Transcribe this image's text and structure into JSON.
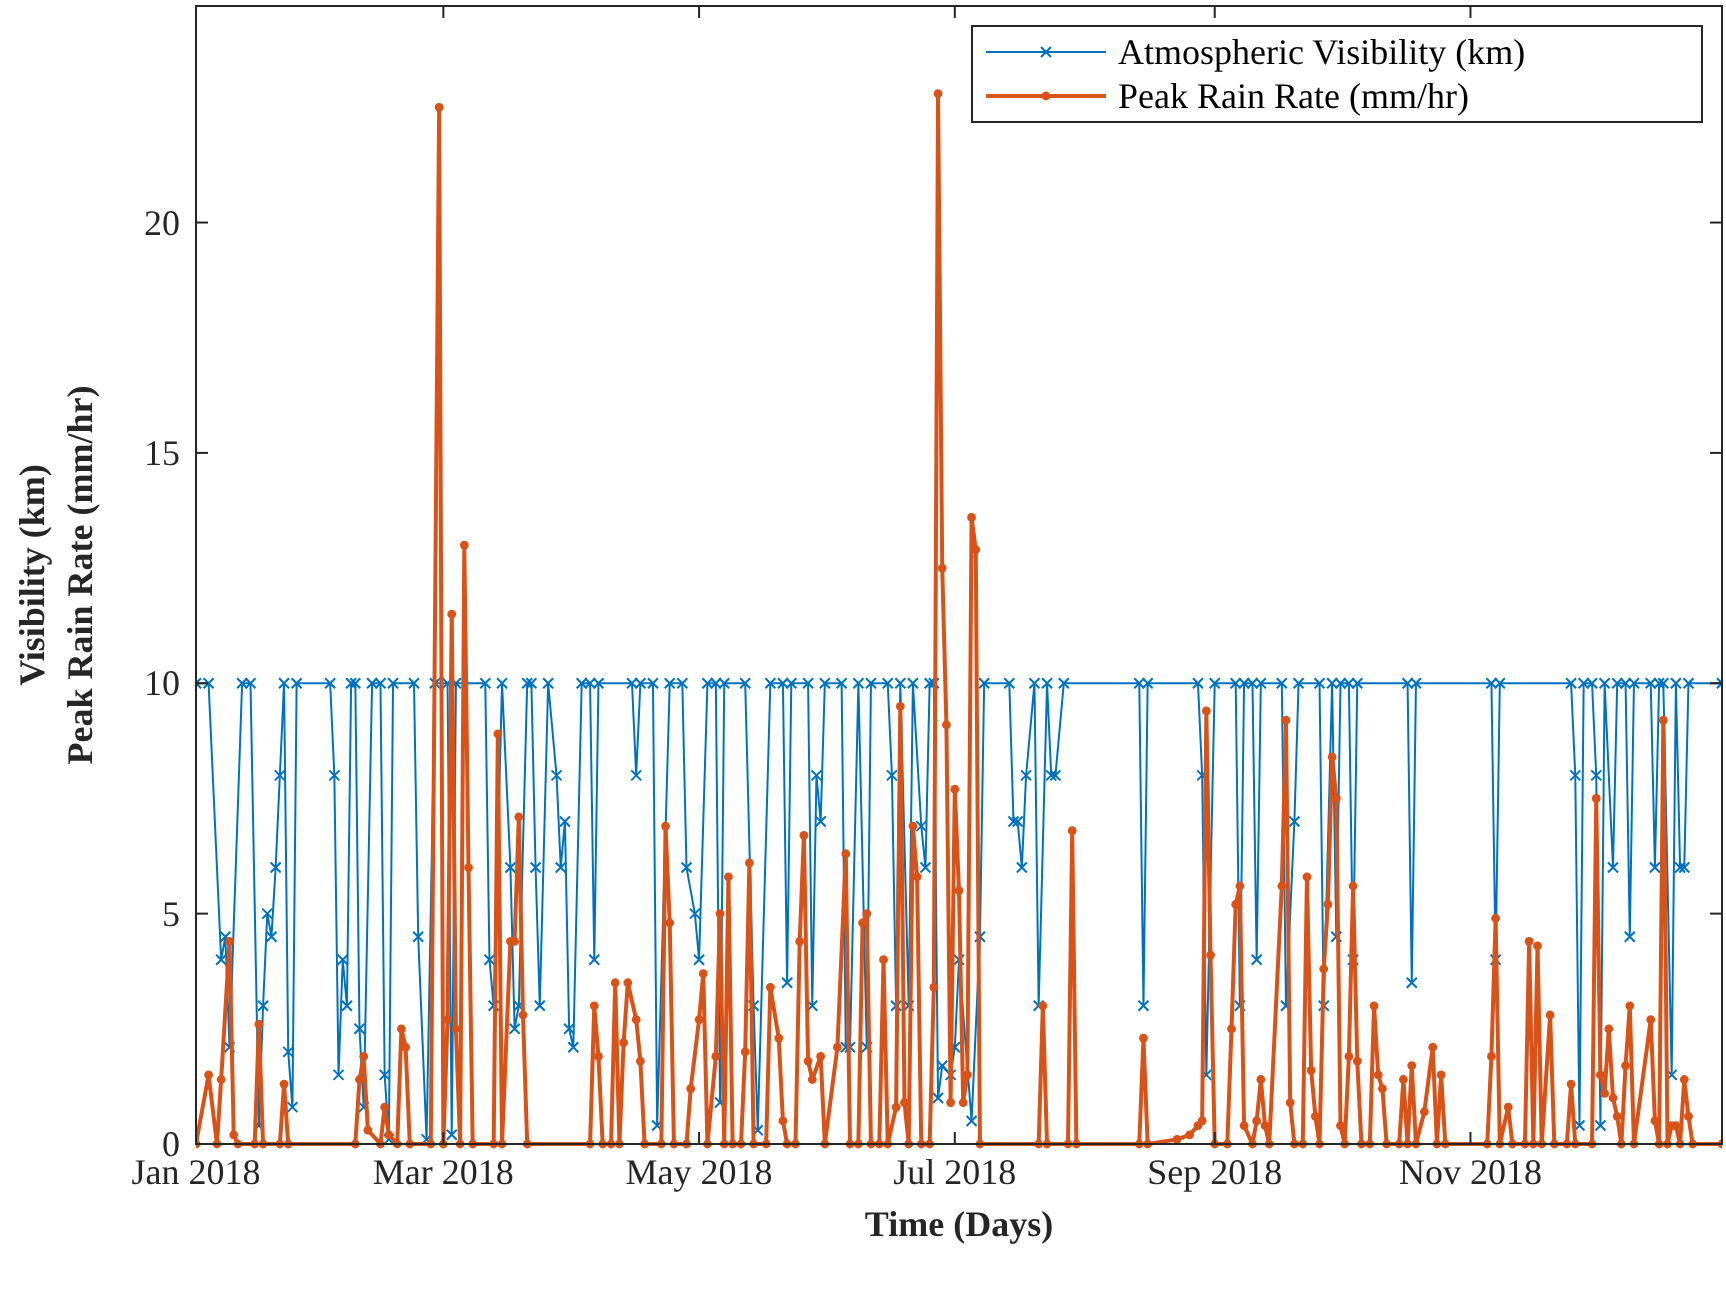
{
  "chart_data": {
    "type": "line",
    "xlabel": "Time (Days)",
    "ylabel": "Visibility (km)\nPeak Rain Rate (mm/hr)",
    "xlim": [
      "2018-01-01",
      "2018-12-31"
    ],
    "xticks": [
      {
        "value": "2018-01-01",
        "label": "Jan 2018"
      },
      {
        "value": "2018-03-01",
        "label": "Mar 2018"
      },
      {
        "value": "2018-05-01",
        "label": "May 2018"
      },
      {
        "value": "2018-07-01",
        "label": "Jul 2018"
      },
      {
        "value": "2018-09-01",
        "label": "Sep 2018"
      },
      {
        "value": "2018-11-01",
        "label": "Nov 2018"
      }
    ],
    "ylim": [
      0,
      24.7
    ],
    "yticks": [
      0,
      5,
      10,
      15,
      20
    ],
    "grid": false,
    "legend": "top right",
    "line_style": "solid",
    "series": [
      {
        "name": "Atmospheric Visibility (km)",
        "color": "#0072bd",
        "marker": "cross",
        "x": [
          "2018-01-01",
          "2018-01-04",
          "2018-01-07",
          "2018-01-08",
          "2018-01-09",
          "2018-01-12",
          "2018-01-14",
          "2018-01-16",
          "2018-01-17",
          "2018-01-18",
          "2018-01-19",
          "2018-01-20",
          "2018-01-21",
          "2018-01-22",
          "2018-01-23",
          "2018-01-24",
          "2018-01-25",
          "2018-02-02",
          "2018-02-03",
          "2018-02-04",
          "2018-02-05",
          "2018-02-06",
          "2018-02-07",
          "2018-02-08",
          "2018-02-09",
          "2018-02-10",
          "2018-02-12",
          "2018-02-14",
          "2018-02-15",
          "2018-02-16",
          "2018-02-17",
          "2018-02-22",
          "2018-02-23",
          "2018-02-25",
          "2018-02-27",
          "2018-03-02",
          "2018-03-03",
          "2018-03-04",
          "2018-03-11",
          "2018-03-12",
          "2018-03-13",
          "2018-03-15",
          "2018-03-17",
          "2018-03-18",
          "2018-03-19",
          "2018-03-21",
          "2018-03-22",
          "2018-03-23",
          "2018-03-24",
          "2018-03-26",
          "2018-03-28",
          "2018-03-29",
          "2018-03-30",
          "2018-03-31",
          "2018-04-01",
          "2018-04-03",
          "2018-04-05",
          "2018-04-06",
          "2018-04-07",
          "2018-04-15",
          "2018-04-16",
          "2018-04-17",
          "2018-04-20",
          "2018-04-21",
          "2018-04-24",
          "2018-04-27",
          "2018-04-28",
          "2018-04-30",
          "2018-05-01",
          "2018-05-03",
          "2018-05-05",
          "2018-05-06",
          "2018-05-07",
          "2018-05-12",
          "2018-05-14",
          "2018-05-15",
          "2018-05-18",
          "2018-05-21",
          "2018-05-22",
          "2018-05-23",
          "2018-05-27",
          "2018-05-28",
          "2018-05-29",
          "2018-05-30",
          "2018-05-31",
          "2018-06-04",
          "2018-06-05",
          "2018-06-06",
          "2018-06-08",
          "2018-06-10",
          "2018-06-11",
          "2018-06-15",
          "2018-06-16",
          "2018-06-17",
          "2018-06-18",
          "2018-06-20",
          "2018-06-21",
          "2018-06-23",
          "2018-06-24",
          "2018-06-25",
          "2018-06-26",
          "2018-06-27",
          "2018-06-28",
          "2018-06-30",
          "2018-07-01",
          "2018-07-02",
          "2018-07-05",
          "2018-07-07",
          "2018-07-08",
          "2018-07-14",
          "2018-07-15",
          "2018-07-16",
          "2018-07-17",
          "2018-07-18",
          "2018-07-20",
          "2018-07-21",
          "2018-07-23",
          "2018-07-24",
          "2018-07-25",
          "2018-07-27",
          "2018-08-14",
          "2018-08-15",
          "2018-08-16",
          "2018-08-28",
          "2018-08-29",
          "2018-08-30",
          "2018-09-01",
          "2018-09-06",
          "2018-09-07",
          "2018-09-08",
          "2018-09-10",
          "2018-09-11",
          "2018-09-12",
          "2018-09-17",
          "2018-09-18",
          "2018-09-20",
          "2018-09-21",
          "2018-09-26",
          "2018-09-27",
          "2018-09-29",
          "2018-09-30",
          "2018-10-01",
          "2018-10-03",
          "2018-10-04",
          "2018-10-05",
          "2018-10-17",
          "2018-10-18",
          "2018-10-19",
          "2018-11-06",
          "2018-11-07",
          "2018-11-08",
          "2018-11-25",
          "2018-11-26",
          "2018-11-27",
          "2018-11-28",
          "2018-11-30",
          "2018-12-01",
          "2018-12-02",
          "2018-12-03",
          "2018-12-05",
          "2018-12-06",
          "2018-12-08",
          "2018-12-09",
          "2018-12-10",
          "2018-12-14",
          "2018-12-15",
          "2018-12-16",
          "2018-12-17",
          "2018-12-19",
          "2018-12-20",
          "2018-12-21",
          "2018-12-22",
          "2018-12-23",
          "2018-12-31"
        ],
        "values": [
          10,
          10,
          4.0,
          4.5,
          2.1,
          10,
          10,
          0.4,
          3.0,
          5.0,
          4.5,
          6.0,
          8.0,
          10,
          2.0,
          0.8,
          10,
          10,
          8.0,
          1.5,
          4.0,
          3.0,
          10,
          10,
          2.5,
          0.8,
          10,
          10,
          1.5,
          0.1,
          10,
          10,
          4.5,
          0.1,
          10,
          10,
          0.2,
          10,
          10,
          4.0,
          3.0,
          10,
          6.0,
          2.5,
          3.0,
          10,
          10,
          6.0,
          3.0,
          10,
          8.0,
          6.0,
          7.0,
          2.5,
          2.1,
          10,
          10,
          4.0,
          10,
          10,
          8.0,
          10,
          10,
          0.4,
          10,
          10,
          6.0,
          5.0,
          4.0,
          10,
          10,
          0.9,
          10,
          10,
          3.0,
          0.3,
          10,
          10,
          3.5,
          10,
          10,
          3.0,
          8.0,
          7.0,
          10,
          10,
          2.1,
          2.1,
          10,
          2.1,
          10,
          10,
          8.0,
          3.0,
          10,
          3.0,
          10,
          6.9,
          6.0,
          10,
          10,
          1.0,
          1.7,
          1.5,
          2.1,
          4.0,
          0.5,
          4.5,
          10,
          10,
          7.0,
          7.0,
          6.0,
          8.0,
          10,
          3.0,
          10,
          8.0,
          8.0,
          10,
          10,
          3.0,
          10,
          10,
          8.0,
          1.5,
          10,
          10,
          3.0,
          10,
          10,
          4.0,
          10,
          10,
          3.0,
          7.0,
          10,
          10,
          3.0,
          10,
          4.5,
          10,
          10,
          4.0,
          10,
          10,
          3.5,
          10,
          10,
          4.0,
          10,
          10,
          8.0,
          0.4,
          10,
          10,
          8.0,
          0.4,
          10,
          6.0,
          10,
          10,
          4.5,
          10,
          10,
          6.0,
          10,
          10,
          1.5,
          10,
          6.0,
          6.0,
          10,
          10
        ]
      },
      {
        "name": "Peak Rain Rate (mm/hr)",
        "color": "#d95319",
        "marker": "circle",
        "x": [
          "2018-01-01",
          "2018-01-04",
          "2018-01-06",
          "2018-01-07",
          "2018-01-09",
          "2018-01-10",
          "2018-01-11",
          "2018-01-15",
          "2018-01-16",
          "2018-01-17",
          "2018-01-21",
          "2018-01-22",
          "2018-01-23",
          "2018-02-08",
          "2018-02-09",
          "2018-02-10",
          "2018-02-11",
          "2018-02-14",
          "2018-02-15",
          "2018-02-16",
          "2018-02-18",
          "2018-02-19",
          "2018-02-20",
          "2018-02-21",
          "2018-02-26",
          "2018-02-28",
          "2018-03-01",
          "2018-03-02",
          "2018-03-03",
          "2018-03-04",
          "2018-03-05",
          "2018-03-06",
          "2018-03-07",
          "2018-03-08",
          "2018-03-13",
          "2018-03-14",
          "2018-03-15",
          "2018-03-17",
          "2018-03-18",
          "2018-03-19",
          "2018-03-20",
          "2018-03-21",
          "2018-04-05",
          "2018-04-06",
          "2018-04-07",
          "2018-04-08",
          "2018-04-10",
          "2018-04-11",
          "2018-04-12",
          "2018-04-13",
          "2018-04-14",
          "2018-04-16",
          "2018-04-17",
          "2018-04-18",
          "2018-04-22",
          "2018-04-23",
          "2018-04-24",
          "2018-04-25",
          "2018-04-28",
          "2018-04-29",
          "2018-05-01",
          "2018-05-02",
          "2018-05-03",
          "2018-05-05",
          "2018-05-06",
          "2018-05-07",
          "2018-05-08",
          "2018-05-09",
          "2018-05-11",
          "2018-05-12",
          "2018-05-13",
          "2018-05-14",
          "2018-05-17",
          "2018-05-18",
          "2018-05-20",
          "2018-05-21",
          "2018-05-22",
          "2018-05-24",
          "2018-05-25",
          "2018-05-26",
          "2018-05-27",
          "2018-05-28",
          "2018-05-30",
          "2018-05-31",
          "2018-06-03",
          "2018-06-05",
          "2018-06-06",
          "2018-06-08",
          "2018-06-09",
          "2018-06-10",
          "2018-06-11",
          "2018-06-13",
          "2018-06-14",
          "2018-06-15",
          "2018-06-17",
          "2018-06-18",
          "2018-06-19",
          "2018-06-20",
          "2018-06-21",
          "2018-06-22",
          "2018-06-23",
          "2018-06-25",
          "2018-06-26",
          "2018-06-27",
          "2018-06-28",
          "2018-06-29",
          "2018-06-30",
          "2018-07-01",
          "2018-07-02",
          "2018-07-03",
          "2018-07-04",
          "2018-07-05",
          "2018-07-06",
          "2018-07-07",
          "2018-07-21",
          "2018-07-22",
          "2018-07-23",
          "2018-07-28",
          "2018-07-29",
          "2018-07-30",
          "2018-08-14",
          "2018-08-15",
          "2018-08-16",
          "2018-08-23",
          "2018-08-26",
          "2018-08-28",
          "2018-08-29",
          "2018-08-30",
          "2018-08-31",
          "2018-09-01",
          "2018-09-04",
          "2018-09-05",
          "2018-09-06",
          "2018-09-07",
          "2018-09-08",
          "2018-09-10",
          "2018-09-11",
          "2018-09-12",
          "2018-09-13",
          "2018-09-14",
          "2018-09-17",
          "2018-09-18",
          "2018-09-19",
          "2018-09-20",
          "2018-09-22",
          "2018-09-23",
          "2018-09-24",
          "2018-09-25",
          "2018-09-26",
          "2018-09-27",
          "2018-09-28",
          "2018-09-29",
          "2018-09-30",
          "2018-10-01",
          "2018-10-02",
          "2018-10-03",
          "2018-10-04",
          "2018-10-05",
          "2018-10-06",
          "2018-10-08",
          "2018-10-09",
          "2018-10-10",
          "2018-10-11",
          "2018-10-12",
          "2018-10-15",
          "2018-10-16",
          "2018-10-17",
          "2018-10-18",
          "2018-10-19",
          "2018-10-21",
          "2018-10-23",
          "2018-10-24",
          "2018-10-25",
          "2018-10-26",
          "2018-11-05",
          "2018-11-06",
          "2018-11-07",
          "2018-11-08",
          "2018-11-10",
          "2018-11-11",
          "2018-11-14",
          "2018-11-15",
          "2018-11-16",
          "2018-11-17",
          "2018-11-18",
          "2018-11-20",
          "2018-11-21",
          "2018-11-24",
          "2018-11-25",
          "2018-11-26",
          "2018-11-30",
          "2018-12-01",
          "2018-12-02",
          "2018-12-03",
          "2018-12-04",
          "2018-12-05",
          "2018-12-06",
          "2018-12-07",
          "2018-12-08",
          "2018-12-09",
          "2018-12-10",
          "2018-12-14",
          "2018-12-15",
          "2018-12-16",
          "2018-12-17",
          "2018-12-18",
          "2018-12-19",
          "2018-12-20",
          "2018-12-21",
          "2018-12-22",
          "2018-12-23",
          "2018-12-24",
          "2018-12-31"
        ],
        "values": [
          0,
          1.5,
          0,
          1.4,
          4.4,
          0.2,
          0,
          0,
          2.6,
          0,
          0,
          1.3,
          0,
          0,
          1.4,
          1.9,
          0.3,
          0,
          0.8,
          0.2,
          0,
          2.5,
          2.1,
          0,
          0,
          22.5,
          0,
          2.7,
          11.5,
          2.5,
          0,
          13.0,
          6.0,
          0,
          0,
          8.9,
          0,
          4.4,
          4.4,
          7.1,
          2.8,
          0,
          0,
          3.0,
          1.9,
          0,
          0,
          3.5,
          0,
          2.2,
          3.5,
          2.7,
          1.8,
          0,
          0,
          6.9,
          4.8,
          0,
          0,
          1.2,
          2.7,
          3.7,
          0,
          1.9,
          5.0,
          0,
          5.8,
          0,
          0,
          2.0,
          6.1,
          0,
          0,
          3.4,
          2.3,
          0.5,
          0,
          0,
          4.4,
          6.7,
          1.8,
          1.4,
          1.9,
          0,
          2.1,
          6.3,
          0,
          0,
          4.8,
          5.0,
          0,
          0,
          4.0,
          0,
          0.8,
          9.5,
          0.9,
          0,
          6.9,
          5.8,
          0,
          0,
          3.4,
          22.8,
          12.5,
          9.1,
          0.9,
          7.7,
          5.5,
          0.9,
          1.5,
          13.6,
          12.9,
          0,
          0,
          3.0,
          0,
          0,
          6.8,
          0,
          0,
          2.3,
          0,
          0.1,
          0.2,
          0.4,
          0.5,
          9.4,
          4.1,
          0,
          0,
          2.5,
          5.2,
          5.6,
          0.4,
          0,
          0.5,
          1.4,
          0.4,
          0,
          5.6,
          9.2,
          0.9,
          0,
          0,
          5.8,
          1.6,
          0.6,
          0,
          3.8,
          5.2,
          8.4,
          7.5,
          0.4,
          0,
          1.9,
          5.6,
          1.8,
          0,
          0,
          3.0,
          1.5,
          1.2,
          0,
          0,
          1.4,
          0,
          1.7,
          0,
          0.7,
          2.1,
          0,
          1.5,
          0,
          0,
          1.9,
          4.9,
          0,
          0.8,
          0,
          0,
          4.4,
          0,
          4.3,
          0,
          2.8,
          0,
          0,
          1.3,
          0,
          0,
          7.5,
          1.5,
          1.1,
          2.5,
          1.0,
          0.6,
          0,
          1.7,
          3.0,
          0,
          2.7,
          0.5,
          0,
          9.2,
          0,
          0.4,
          0.4,
          0,
          1.4,
          0.6,
          0,
          0
        ]
      }
    ]
  }
}
